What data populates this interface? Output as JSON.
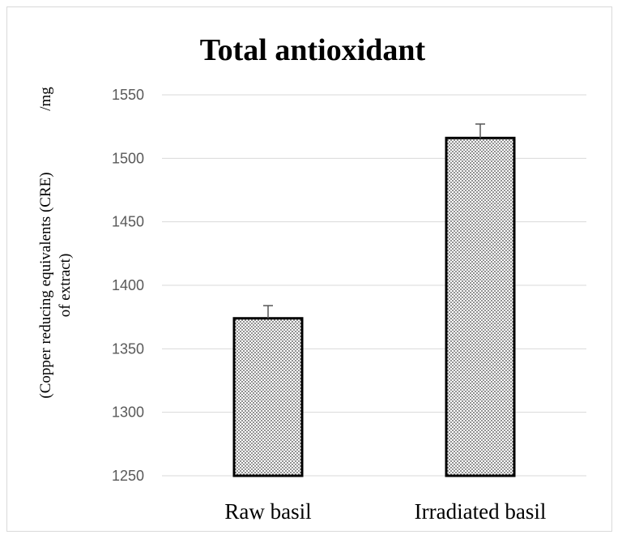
{
  "chart_data": {
    "type": "bar",
    "title": "Total antioxidant",
    "ylabel_line1": "(Copper reducing equivalents (CRE)",
    "ylabel_unit": "/mg",
    "ylabel_line2": "of extract)",
    "xlabel": "",
    "categories": [
      "Raw basil",
      "Irradiated basil"
    ],
    "values": [
      1374,
      1516
    ],
    "error": [
      10,
      11
    ],
    "ylim": [
      1250,
      1550
    ],
    "yticks": [
      1250,
      1300,
      1350,
      1400,
      1450,
      1500,
      1550
    ],
    "grid": true,
    "bar_pattern": "dotted",
    "colors": {
      "bar_outline": "#000000",
      "grid": "#d9d9d9",
      "tick_text": "#595959"
    }
  }
}
